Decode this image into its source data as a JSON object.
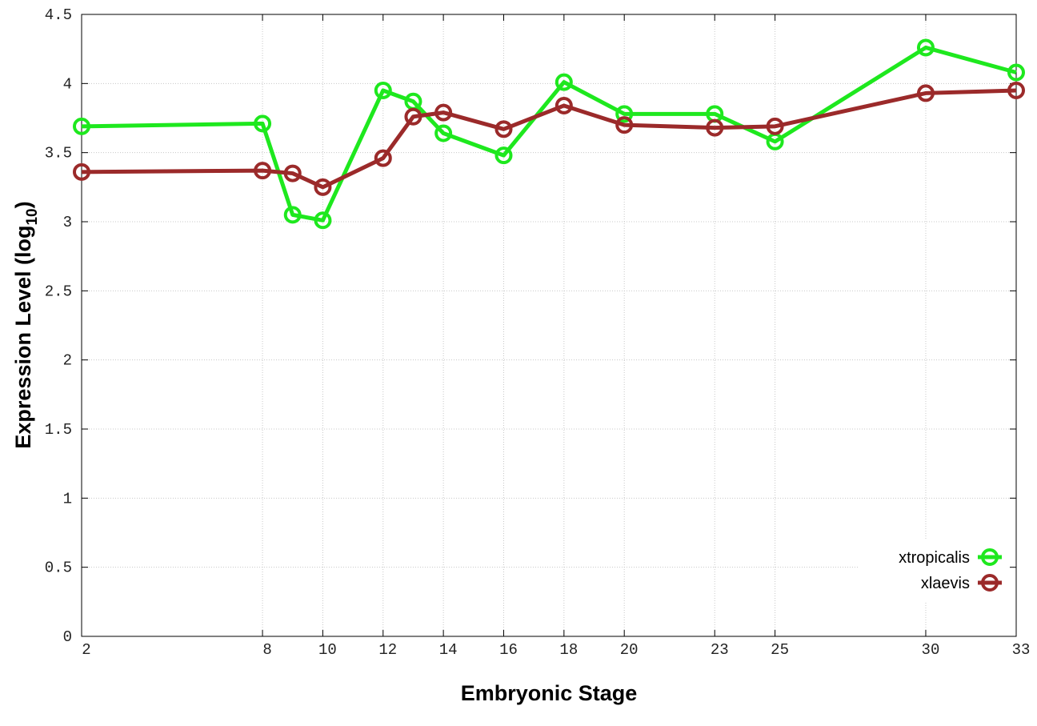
{
  "chart_data": {
    "type": "line",
    "x_label": "Embryonic Stage",
    "y_label_parts": [
      "Expression Level (log",
      "10",
      ")"
    ],
    "x": [
      2,
      8,
      9,
      10,
      12,
      13,
      14,
      16,
      18,
      20,
      23,
      25,
      30,
      33
    ],
    "series": [
      {
        "name": "xtropicalis",
        "color": "#1ee81e",
        "values": [
          3.69,
          3.71,
          3.05,
          3.01,
          3.95,
          3.87,
          3.64,
          3.48,
          4.01,
          3.78,
          3.78,
          3.58,
          4.26,
          4.08
        ]
      },
      {
        "name": "xlaevis",
        "color": "#9b2a2a",
        "values": [
          3.36,
          3.37,
          3.35,
          3.25,
          3.46,
          3.76,
          3.79,
          3.67,
          3.84,
          3.7,
          3.68,
          3.69,
          3.93,
          3.95
        ]
      }
    ],
    "xlim": [
      2,
      33
    ],
    "xticks": [
      2,
      8,
      10,
      12,
      14,
      16,
      18,
      20,
      23,
      25,
      30,
      33
    ],
    "ylim": [
      0,
      4.5
    ],
    "yticks": [
      0,
      0.5,
      1,
      1.5,
      2,
      2.5,
      3,
      3.5,
      4,
      4.5
    ],
    "grid": true,
    "legend_position": "lower right"
  }
}
